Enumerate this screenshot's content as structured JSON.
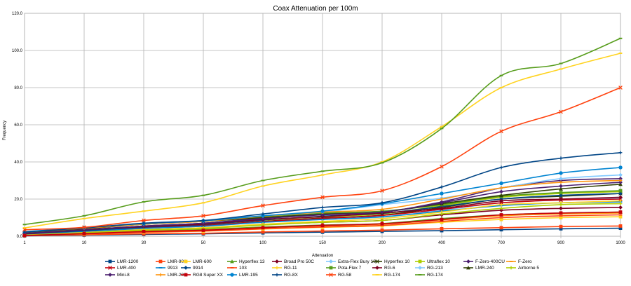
{
  "chart_data": {
    "type": "line",
    "title": "Coax Attenuation per 100m",
    "xlabel": "Attenuation",
    "ylabel": "Frequency",
    "categories": [
      "1",
      "10",
      "30",
      "50",
      "100",
      "150",
      "200",
      "400",
      "700",
      "900",
      "1000"
    ],
    "ylim": [
      0,
      120
    ],
    "yticks": [
      "0.0",
      "20.0",
      "40.0",
      "60.0",
      "80.0",
      "100.0",
      "120.0"
    ],
    "grid": true,
    "legend_position": "bottom",
    "series": [
      {
        "name": "LMR-1200",
        "color": "#004586",
        "marker": "square",
        "values": [
          0.2,
          0.6,
          1.0,
          1.3,
          1.8,
          2.2,
          2.6,
          3.0,
          3.5,
          4.0,
          4.3
        ]
      },
      {
        "name": "LMR-900",
        "color": "#ff420e",
        "marker": "square",
        "values": [
          0.3,
          0.8,
          1.3,
          1.6,
          2.3,
          2.8,
          3.3,
          4.0,
          4.6,
          5.2,
          5.5
        ]
      },
      {
        "name": "LMR-600",
        "color": "#ffd320",
        "marker": "square",
        "values": [
          0.4,
          1.2,
          2.1,
          2.7,
          3.9,
          4.8,
          5.6,
          7.5,
          9.0,
          10.0,
          10.5
        ]
      },
      {
        "name": "Hyperflex 13",
        "color": "#579d1c",
        "marker": "triangle",
        "values": [
          0.6,
          1.6,
          2.8,
          3.6,
          5.0,
          6.0,
          6.8,
          9.5,
          11.5,
          12.5,
          13.0
        ]
      },
      {
        "name": "Broad Pro 50C",
        "color": "#7e0021",
        "marker": "diamond",
        "values": [
          0.8,
          2.2,
          3.5,
          4.5,
          6.2,
          7.5,
          8.5,
          11.5,
          14.0,
          15.0,
          15.5
        ]
      },
      {
        "name": "Extra-Flex Bury 10",
        "color": "#83caff",
        "marker": "diamond",
        "values": [
          0.9,
          2.6,
          4.3,
          5.4,
          7.5,
          9.0,
          10.3,
          14.0,
          18.0,
          19.5,
          20.5
        ]
      },
      {
        "name": "Hyperflex 10",
        "color": "#314004",
        "marker": "cross",
        "values": [
          1.0,
          2.8,
          4.6,
          5.8,
          8.0,
          9.8,
          11.3,
          15.5,
          20.0,
          21.5,
          23.0
        ]
      },
      {
        "name": "Ultraflex 10",
        "color": "#aecf00",
        "marker": "square",
        "values": [
          1.2,
          3.0,
          4.9,
          6.2,
          8.6,
          10.5,
          12.0,
          16.5,
          21.0,
          23.0,
          24.0
        ]
      },
      {
        "name": "F-Zero-400CU",
        "color": "#4b1f6f",
        "marker": "diamond",
        "values": [
          1.4,
          3.3,
          5.5,
          7.0,
          9.8,
          12.0,
          13.0,
          18.5,
          26.0,
          30.0,
          31.0
        ]
      },
      {
        "name": "F-Zero",
        "color": "#ff950e",
        "marker": "dash",
        "values": [
          0.5,
          1.5,
          2.6,
          3.3,
          4.6,
          5.6,
          6.5,
          8.8,
          11.0,
          12.0,
          12.5
        ]
      },
      {
        "name": "LMR-400",
        "color": "#c5000b",
        "marker": "x",
        "values": [
          1.0,
          2.9,
          4.6,
          5.8,
          7.9,
          9.6,
          11.2,
          14.5,
          18.0,
          19.5,
          20.0
        ]
      },
      {
        "name": "9913",
        "color": "#0084d1",
        "marker": "dash",
        "values": [
          1.0,
          2.6,
          4.2,
          5.4,
          7.5,
          9.0,
          10.5,
          13.5,
          16.5,
          18.0,
          18.5
        ]
      },
      {
        "name": "9914",
        "color": "#004586",
        "marker": "diamond",
        "values": [
          1.2,
          3.0,
          4.9,
          6.3,
          8.7,
          10.8,
          12.3,
          16.0,
          20.0,
          22.0,
          23.0
        ]
      },
      {
        "name": "103",
        "color": "#ff420e",
        "marker": "dash",
        "values": [
          0.4,
          1.2,
          2.2,
          2.8,
          4.0,
          5.0,
          5.8,
          8.0,
          10.0,
          11.0,
          11.5
        ]
      },
      {
        "name": "RG-11",
        "color": "#ffd320",
        "marker": "plus",
        "values": [
          0.6,
          2.0,
          3.6,
          4.6,
          6.5,
          8.0,
          9.5,
          13.0,
          17.0,
          18.0,
          19.0
        ]
      },
      {
        "name": "Pota-Flex 7",
        "color": "#579d1c",
        "marker": "square",
        "values": [
          1.6,
          4.0,
          6.5,
          8.0,
          10.5,
          12.5,
          13.5,
          17.0,
          21.5,
          23.5,
          24.5
        ]
      },
      {
        "name": "RG-6",
        "color": "#7e0021",
        "marker": "diamond",
        "values": [
          1.3,
          3.4,
          5.2,
          6.5,
          9.0,
          10.5,
          12.5,
          15.0,
          19.0,
          20.0,
          21.0
        ]
      },
      {
        "name": "RG-213",
        "color": "#83caff",
        "marker": "diamond",
        "values": [
          2.0,
          4.5,
          7.0,
          8.5,
          11.0,
          13.0,
          17.0,
          20.5,
          26.0,
          31.0,
          33.0
        ]
      },
      {
        "name": "LMR-240",
        "color": "#314004",
        "marker": "triangle",
        "values": [
          2.0,
          4.0,
          6.5,
          8.0,
          10.0,
          11.8,
          13.0,
          17.5,
          22.0,
          25.5,
          28.0
        ]
      },
      {
        "name": "Airborne 5",
        "color": "#aecf00",
        "marker": "plus",
        "values": [
          0.5,
          1.8,
          3.3,
          4.2,
          6.0,
          7.5,
          8.5,
          12.0,
          15.0,
          17.0,
          17.5
        ]
      },
      {
        "name": "Mini-8",
        "color": "#4b1f6f",
        "marker": "diamond",
        "values": [
          1.5,
          3.5,
          5.5,
          7.0,
          9.5,
          11.5,
          13.0,
          18.0,
          24.0,
          27.0,
          29.0
        ]
      },
      {
        "name": "LMR-200",
        "color": "#ff950e",
        "marker": "plus",
        "values": [
          2.2,
          4.3,
          6.5,
          8.0,
          10.8,
          13.0,
          14.5,
          20.0,
          26.0,
          29.0,
          30.0
        ]
      },
      {
        "name": "RG8 Super XX",
        "color": "#c5000b",
        "marker": "square",
        "values": [
          0.4,
          1.4,
          2.5,
          3.2,
          4.6,
          5.8,
          6.7,
          9.0,
          11.5,
          12.5,
          13.0
        ]
      },
      {
        "name": "LMR-195",
        "color": "#0084d1",
        "marker": "circle",
        "values": [
          2.5,
          4.6,
          6.8,
          8.3,
          11.0,
          13.5,
          17.5,
          23.0,
          28.5,
          34.0,
          37.0
        ]
      },
      {
        "name": "RG-8X",
        "color": "#004586",
        "marker": "plus",
        "values": [
          2.2,
          4.5,
          7.0,
          8.5,
          12.0,
          15.5,
          18.0,
          26.5,
          37.0,
          42.0,
          45.0
        ]
      },
      {
        "name": "RG-58",
        "color": "#ff420e",
        "marker": "x",
        "values": [
          3.5,
          4.8,
          8.5,
          11.0,
          16.5,
          21.0,
          24.5,
          37.5,
          56.5,
          67.0,
          80.0
        ]
      },
      {
        "name": "RG-174",
        "color": "#ffd320",
        "marker": "dash",
        "values": [
          4.5,
          9.5,
          13.5,
          18.0,
          27.0,
          33.0,
          40.0,
          59.0,
          80.0,
          90.0,
          98.5
        ]
      },
      {
        "name": "RG-174",
        "color": "#579d1c",
        "marker": "dash",
        "values": [
          6.3,
          11.0,
          18.5,
          22.0,
          30.0,
          35.0,
          39.5,
          58.0,
          86.5,
          93.0,
          106.5
        ]
      }
    ]
  }
}
